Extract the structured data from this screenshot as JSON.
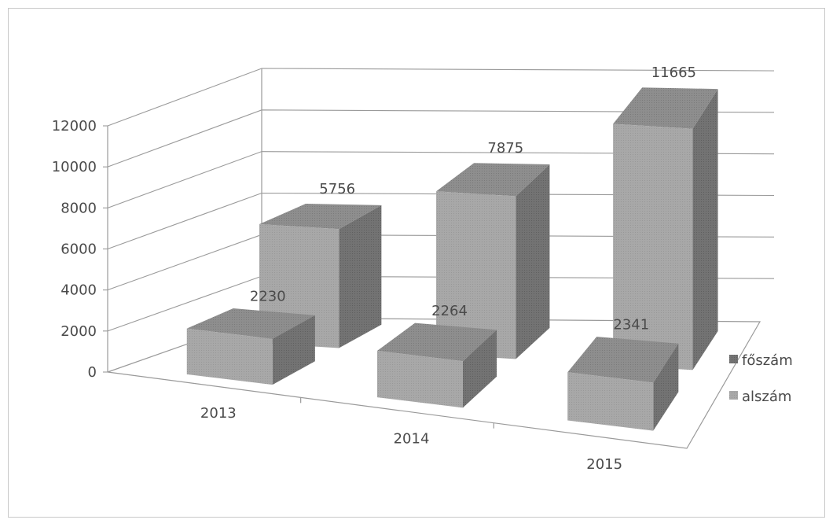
{
  "chart_data": {
    "type": "bar",
    "style": "3d-column",
    "categories": [
      "2013",
      "2014",
      "2015"
    ],
    "series": [
      {
        "name": "alszám",
        "values": [
          2230,
          2264,
          2341
        ]
      },
      {
        "name": "főszám",
        "values": [
          5756,
          7875,
          11665
        ]
      }
    ],
    "y_ticks": [
      "0",
      "2000",
      "4000",
      "6000",
      "8000",
      "10000",
      "12000"
    ],
    "ylim": [
      0,
      12000
    ],
    "grid": true,
    "legend": {
      "position": "right",
      "items": [
        "főszám",
        "alszám"
      ]
    },
    "colors": {
      "front": "#a6a6a6",
      "top": "#8c8c8c",
      "side": "#6e6e6e",
      "grid": "#9a9a9a",
      "text": "#4a4a4a"
    }
  }
}
